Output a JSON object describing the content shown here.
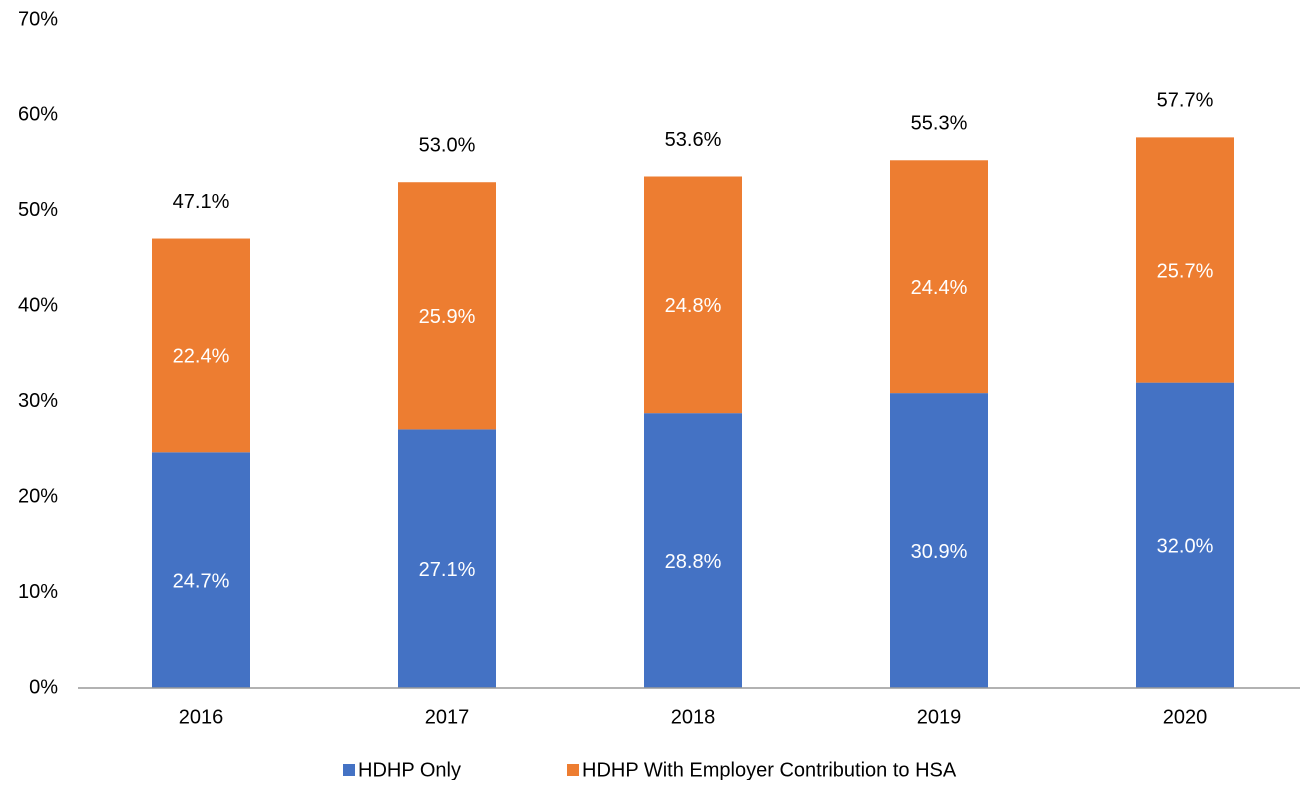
{
  "chart_data": {
    "type": "stacked_bar",
    "categories": [
      "2016",
      "2017",
      "2018",
      "2019",
      "2020"
    ],
    "series": [
      {
        "name": "HDHP Only",
        "color": "#4472c4",
        "values": [
          24.7,
          27.1,
          28.8,
          30.9,
          32.0
        ],
        "value_labels": [
          "24.7%",
          "27.1%",
          "28.8%",
          "30.9%",
          "32.0%"
        ]
      },
      {
        "name": "HDHP With Employer Contribution to HSA",
        "color": "#ed7d31",
        "values": [
          22.4,
          25.9,
          24.8,
          24.4,
          25.7
        ],
        "value_labels": [
          "22.4%",
          "25.9%",
          "24.8%",
          "24.4%",
          "25.7%"
        ]
      }
    ],
    "totals": [
      47.1,
      53.0,
      53.6,
      55.3,
      57.7
    ],
    "total_labels": [
      "47.1%",
      "53.0%",
      "53.6%",
      "55.3%",
      "57.7%"
    ],
    "ylim": [
      0,
      70
    ],
    "yticks": [
      {
        "value": 0,
        "label": "0%"
      },
      {
        "value": 10,
        "label": "10%"
      },
      {
        "value": 20,
        "label": "20%"
      },
      {
        "value": 30,
        "label": "30%"
      },
      {
        "value": 40,
        "label": "40%"
      },
      {
        "value": 50,
        "label": "50%"
      },
      {
        "value": 60,
        "label": "60%"
      },
      {
        "value": 70,
        "label": "70%"
      }
    ],
    "grid": false,
    "legend": "bottom"
  }
}
